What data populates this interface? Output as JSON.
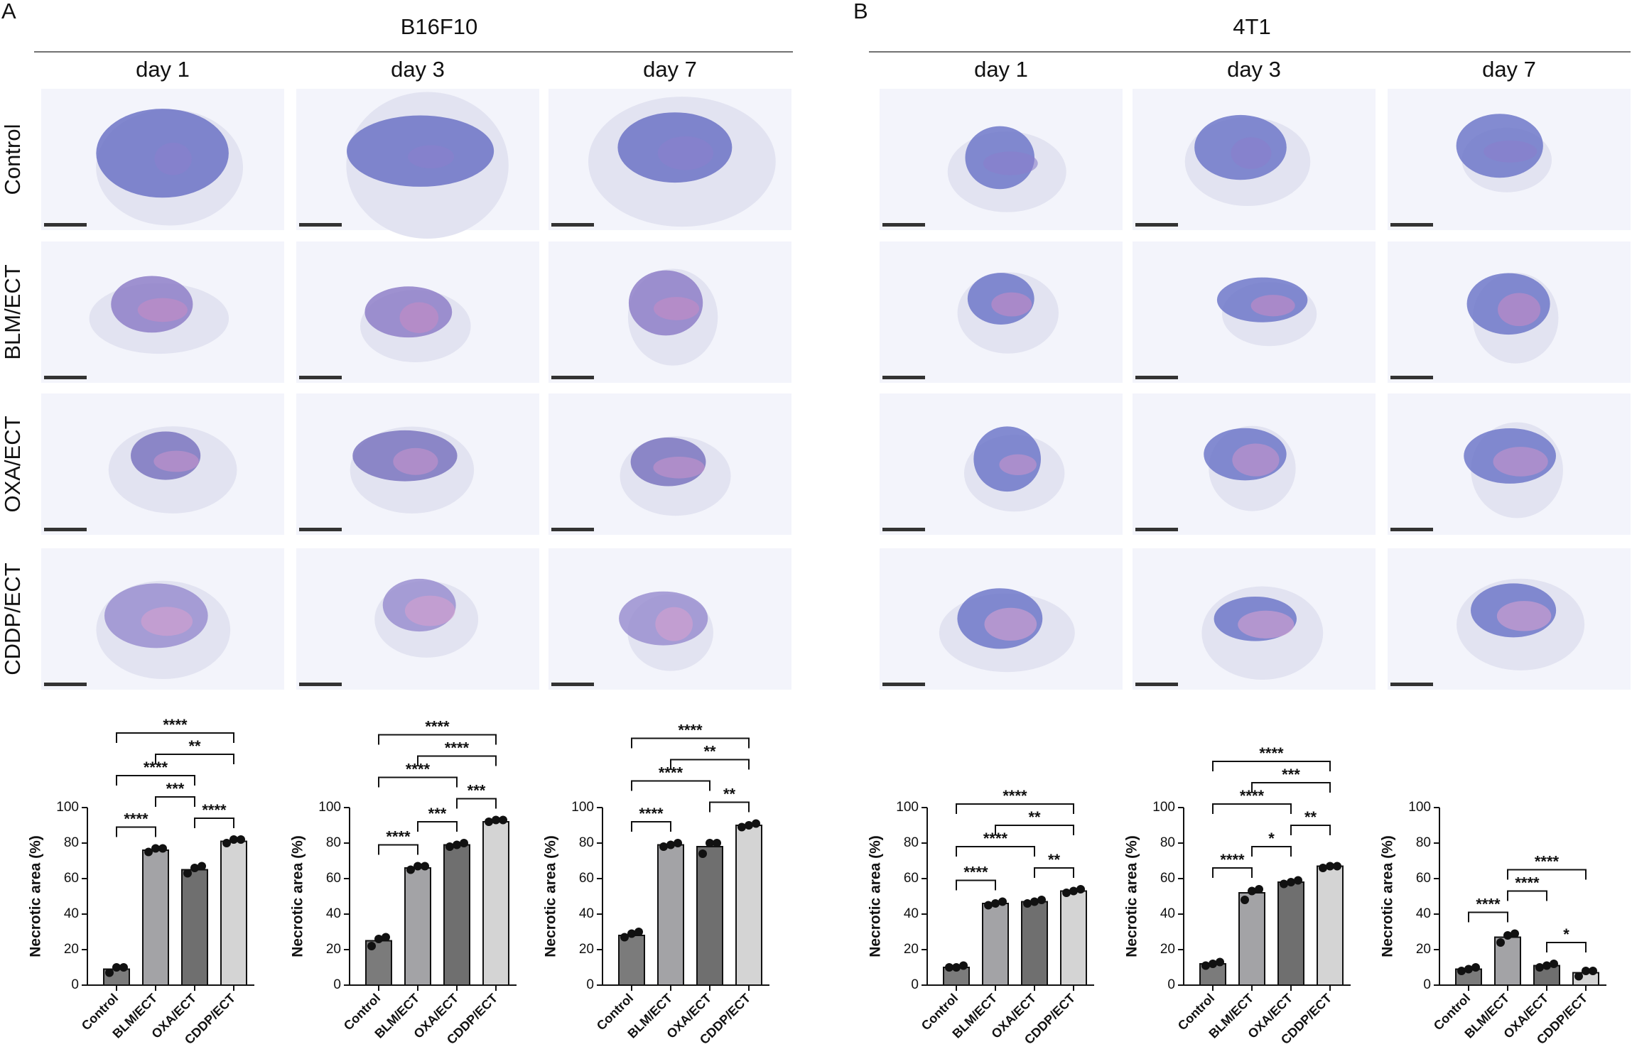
{
  "panels": [
    {
      "label": "A",
      "title": "B16F10",
      "columns": [
        "day 1",
        "day 3",
        "day 7"
      ],
      "rows": [
        "Control",
        "BLM/ECT",
        "OXA/ECT",
        "CDDP/ECT"
      ]
    },
    {
      "label": "B",
      "title": "4T1",
      "columns": [
        "day 1",
        "day 3",
        "day 7"
      ],
      "rows": [
        "Control",
        "BLM/ECT",
        "OXA/ECT",
        "CDDP/ECT"
      ]
    }
  ],
  "chart_data": [
    {
      "type": "bar",
      "ylabel": "Necrotic area (%)",
      "categories": [
        "Control",
        "BLM/ECT",
        "OXA/ECT",
        "CDDP/ECT"
      ],
      "values": [
        9,
        76,
        65,
        81
      ],
      "points": [
        [
          7,
          10,
          10
        ],
        [
          75,
          77,
          77
        ],
        [
          63,
          66,
          67
        ],
        [
          80,
          82,
          82
        ]
      ],
      "colors": [
        "#7b7b7b",
        "#a3a3a6",
        "#6f6f6f",
        "#d4d4d4"
      ],
      "ylim": [
        0,
        100
      ],
      "yticks": [
        0,
        20,
        40,
        60,
        80,
        100
      ],
      "comparisons": [
        {
          "from": 0,
          "to": 1,
          "label": "****"
        },
        {
          "from": 2,
          "to": 3,
          "label": "****"
        },
        {
          "from": 1,
          "to": 2,
          "label": "***"
        },
        {
          "from": 0,
          "to": 2,
          "label": "****"
        },
        {
          "from": 1,
          "to": 3,
          "label": "**"
        },
        {
          "from": 0,
          "to": 3,
          "label": "****"
        }
      ]
    },
    {
      "type": "bar",
      "ylabel": "Necrotic area (%)",
      "categories": [
        "Control",
        "BLM/ECT",
        "OXA/ECT",
        "CDDP/ECT"
      ],
      "values": [
        25,
        66,
        79,
        92
      ],
      "points": [
        [
          22,
          26,
          27
        ],
        [
          65,
          67,
          67
        ],
        [
          78,
          79,
          80
        ],
        [
          92,
          93,
          93
        ]
      ],
      "colors": [
        "#7b7b7b",
        "#a3a3a6",
        "#6f6f6f",
        "#d4d4d4"
      ],
      "ylim": [
        0,
        100
      ],
      "yticks": [
        0,
        20,
        40,
        60,
        80,
        100
      ],
      "comparisons": [
        {
          "from": 0,
          "to": 1,
          "label": "****"
        },
        {
          "from": 1,
          "to": 2,
          "label": "***"
        },
        {
          "from": 2,
          "to": 3,
          "label": "***"
        },
        {
          "from": 0,
          "to": 2,
          "label": "****"
        },
        {
          "from": 1,
          "to": 3,
          "label": "****"
        },
        {
          "from": 0,
          "to": 3,
          "label": "****"
        }
      ]
    },
    {
      "type": "bar",
      "ylabel": "Necrotic area (%)",
      "categories": [
        "Control",
        "BLM/ECT",
        "OXA/ECT",
        "CDDP/ECT"
      ],
      "values": [
        28,
        79,
        78,
        90
      ],
      "points": [
        [
          27,
          29,
          30
        ],
        [
          78,
          79,
          80
        ],
        [
          74,
          80,
          80
        ],
        [
          89,
          90,
          91
        ]
      ],
      "colors": [
        "#7b7b7b",
        "#a3a3a6",
        "#6f6f6f",
        "#d4d4d4"
      ],
      "ylim": [
        0,
        100
      ],
      "yticks": [
        0,
        20,
        40,
        60,
        80,
        100
      ],
      "comparisons": [
        {
          "from": 0,
          "to": 1,
          "label": "****"
        },
        {
          "from": 2,
          "to": 3,
          "label": "**"
        },
        {
          "from": 0,
          "to": 2,
          "label": "****"
        },
        {
          "from": 1,
          "to": 3,
          "label": "**"
        },
        {
          "from": 0,
          "to": 3,
          "label": "****"
        }
      ]
    },
    {
      "type": "bar",
      "ylabel": "Necrotic area (%)",
      "categories": [
        "Control",
        "BLM/ECT",
        "OXA/ECT",
        "CDDP/ECT"
      ],
      "values": [
        10,
        46,
        47,
        53
      ],
      "points": [
        [
          10,
          10,
          11
        ],
        [
          45,
          46,
          47
        ],
        [
          46,
          47,
          48
        ],
        [
          52,
          53,
          54
        ]
      ],
      "colors": [
        "#7b7b7b",
        "#a3a3a6",
        "#6f6f6f",
        "#d4d4d4"
      ],
      "ylim": [
        0,
        100
      ],
      "yticks": [
        0,
        20,
        40,
        60,
        80,
        100
      ],
      "comparisons": [
        {
          "from": 0,
          "to": 1,
          "label": "****"
        },
        {
          "from": 2,
          "to": 3,
          "label": "**"
        },
        {
          "from": 0,
          "to": 2,
          "label": "****"
        },
        {
          "from": 1,
          "to": 3,
          "label": "**"
        },
        {
          "from": 0,
          "to": 3,
          "label": "****"
        }
      ]
    },
    {
      "type": "bar",
      "ylabel": "Necrotic area (%)",
      "categories": [
        "Control",
        "BLM/ECT",
        "OXA/ECT",
        "CDDP/ECT"
      ],
      "values": [
        12,
        52,
        58,
        67
      ],
      "points": [
        [
          11,
          12,
          13
        ],
        [
          48,
          53,
          54
        ],
        [
          57,
          58,
          59
        ],
        [
          66,
          67,
          67
        ]
      ],
      "colors": [
        "#7b7b7b",
        "#a3a3a6",
        "#6f6f6f",
        "#d4d4d4"
      ],
      "ylim": [
        0,
        100
      ],
      "yticks": [
        0,
        20,
        40,
        60,
        80,
        100
      ],
      "comparisons": [
        {
          "from": 0,
          "to": 1,
          "label": "****"
        },
        {
          "from": 1,
          "to": 2,
          "label": "*"
        },
        {
          "from": 2,
          "to": 3,
          "label": "**"
        },
        {
          "from": 0,
          "to": 2,
          "label": "****"
        },
        {
          "from": 1,
          "to": 3,
          "label": "***"
        },
        {
          "from": 0,
          "to": 3,
          "label": "****"
        }
      ]
    },
    {
      "type": "bar",
      "ylabel": "Necrotic area (%)",
      "categories": [
        "Control",
        "BLM/ECT",
        "OXA/ECT",
        "CDDP/ECT"
      ],
      "values": [
        9,
        27,
        11,
        7
      ],
      "points": [
        [
          8,
          9,
          10
        ],
        [
          24,
          28,
          29
        ],
        [
          10,
          11,
          12
        ],
        [
          5,
          8,
          8
        ]
      ],
      "colors": [
        "#7b7b7b",
        "#a3a3a6",
        "#6f6f6f",
        "#d4d4d4"
      ],
      "ylim": [
        0,
        100
      ],
      "yticks": [
        0,
        20,
        40,
        60,
        80,
        100
      ],
      "comparisons": [
        {
          "from": 0,
          "to": 1,
          "label": "****"
        },
        {
          "from": 2,
          "to": 3,
          "label": "*"
        },
        {
          "from": 1,
          "to": 2,
          "label": "****"
        },
        {
          "from": 1,
          "to": 3,
          "label": "****"
        }
      ]
    }
  ]
}
